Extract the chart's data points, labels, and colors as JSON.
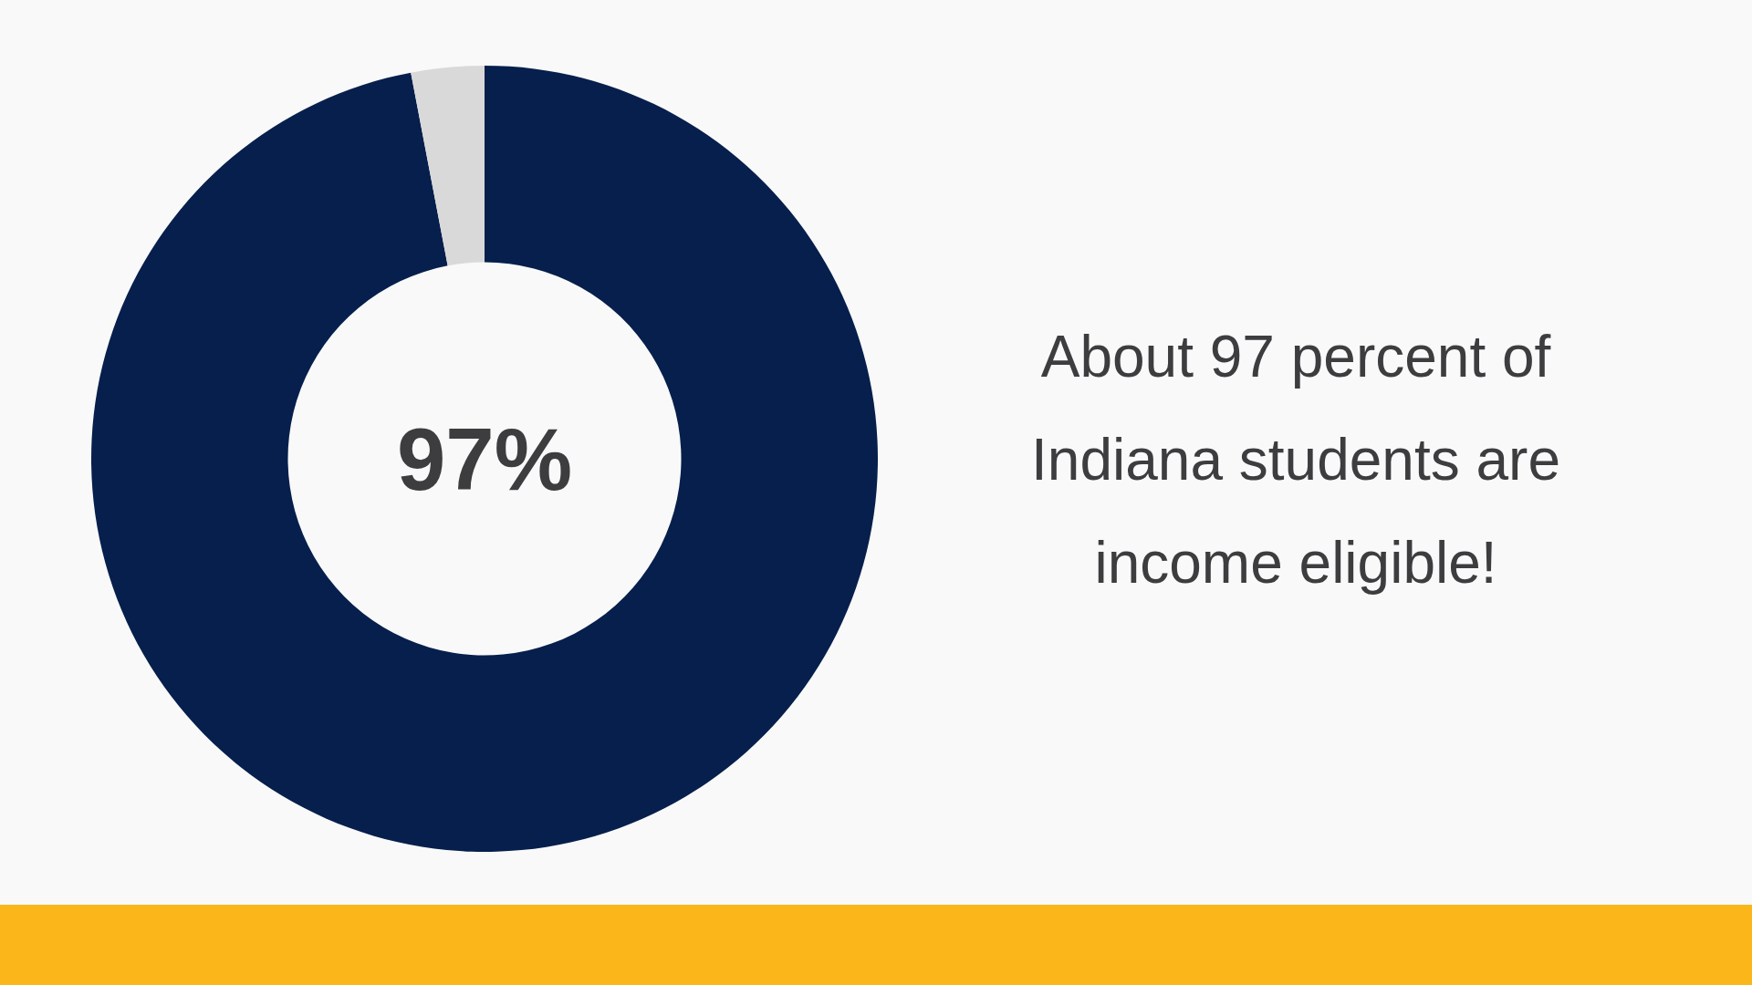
{
  "chart_data": {
    "type": "donut",
    "categories": [
      null,
      null
    ],
    "values": [
      97,
      3
    ],
    "colors": [
      "#061f4c",
      "#d9d9d9"
    ],
    "value_labels": [
      "97%",
      null
    ],
    "annotations": [
      "About 97 percent of Indiana students are income eligible!"
    ]
  }
}
